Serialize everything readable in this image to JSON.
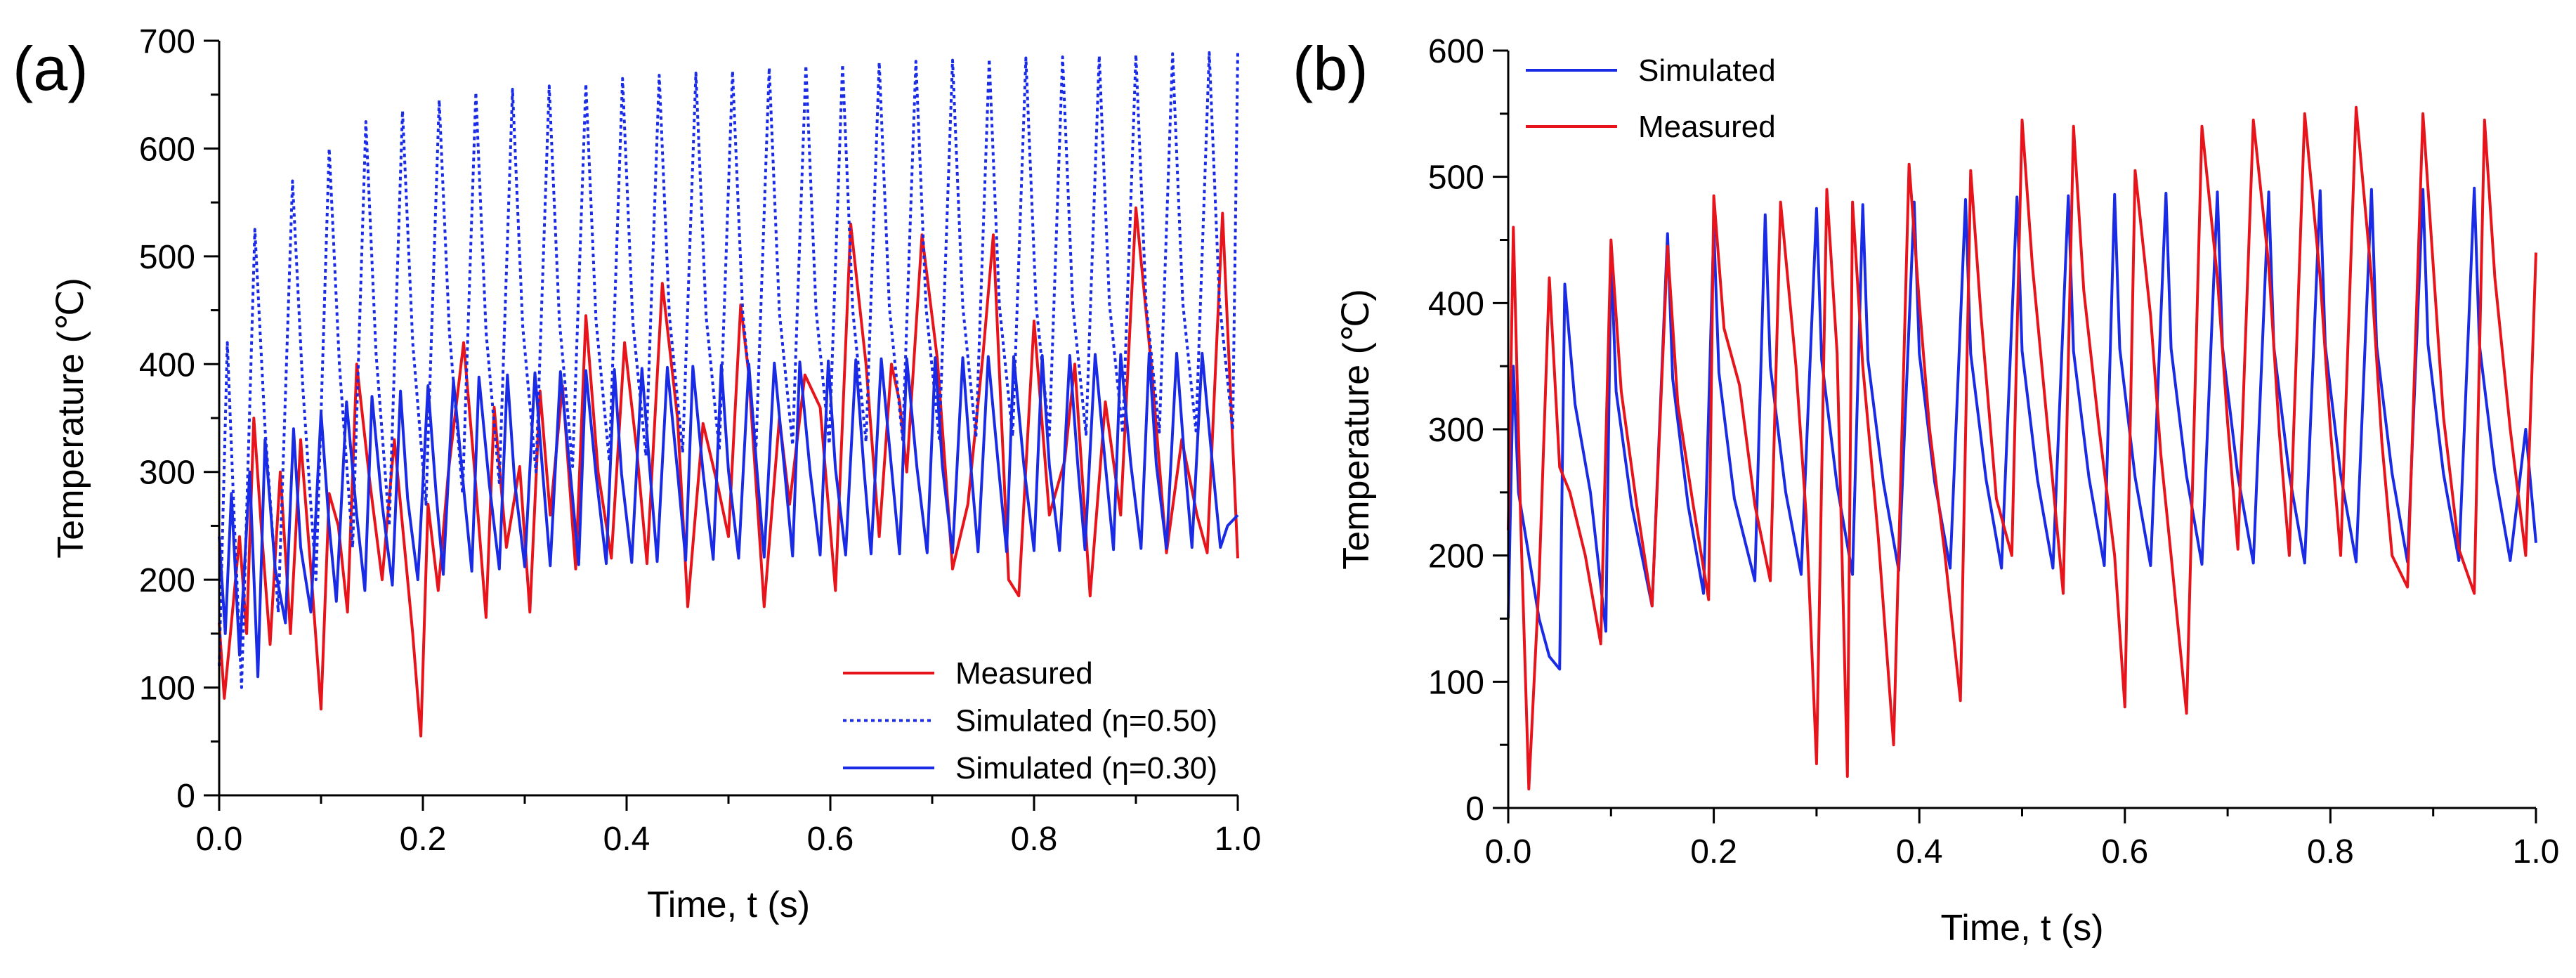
{
  "colors": {
    "measured": "#e8141b",
    "simulated": "#1a2be6",
    "axis": "#000000"
  },
  "chart_data": [
    {
      "panel_label": "(a)",
      "type": "line",
      "xlabel": "Time, t (s)",
      "ylabel": "Temperature (℃)",
      "xlim": [
        0,
        1.0
      ],
      "ylim": [
        0,
        700
      ],
      "xticks": [
        "0.0",
        "0.2",
        "0.4",
        "0.6",
        "0.8",
        "1.0"
      ],
      "yticks": [
        "0",
        "100",
        "200",
        "300",
        "400",
        "500",
        "600",
        "700"
      ],
      "legend_position": "bottom-right",
      "series": [
        {
          "name": "Measured",
          "style": "solid",
          "color": "#e8141b",
          "x": [
            0,
            0.005,
            0.013,
            0.02,
            0.027,
            0.034,
            0.042,
            0.05,
            0.06,
            0.07,
            0.08,
            0.09,
            0.1,
            0.108,
            0.117,
            0.126,
            0.135,
            0.148,
            0.16,
            0.172,
            0.18,
            0.19,
            0.198,
            0.205,
            0.215,
            0.225,
            0.24,
            0.25,
            0.262,
            0.27,
            0.282,
            0.295,
            0.305,
            0.315,
            0.325,
            0.337,
            0.35,
            0.36,
            0.372,
            0.385,
            0.398,
            0.41,
            0.42,
            0.435,
            0.45,
            0.46,
            0.475,
            0.49,
            0.5,
            0.512,
            0.52,
            0.535,
            0.55,
            0.56,
            0.575,
            0.59,
            0.605,
            0.62,
            0.635,
            0.648,
            0.66,
            0.668,
            0.675,
            0.69,
            0.705,
            0.72,
            0.735,
            0.75,
            0.76,
            0.775,
            0.785,
            0.8,
            0.815,
            0.83,
            0.84,
            0.855,
            0.87,
            0.885,
            0.9,
            0.915,
            0.93,
            0.945,
            0.96,
            0.97,
            0.985,
            1.0
          ],
          "y": [
            160,
            90,
            170,
            240,
            150,
            350,
            240,
            140,
            300,
            150,
            330,
            210,
            80,
            280,
            250,
            170,
            400,
            290,
            200,
            330,
            250,
            150,
            55,
            270,
            190,
            300,
            420,
            310,
            165,
            360,
            230,
            305,
            170,
            375,
            260,
            380,
            210,
            445,
            300,
            220,
            420,
            320,
            215,
            475,
            350,
            175,
            345,
            285,
            240,
            455,
            390,
            175,
            350,
            270,
            390,
            360,
            190,
            530,
            400,
            240,
            400,
            365,
            300,
            520,
            405,
            210,
            270,
            410,
            520,
            200,
            185,
            440,
            260,
            310,
            400,
            185,
            365,
            260,
            545,
            400,
            225,
            330,
            260,
            225,
            540,
            220
          ]
        },
        {
          "name": "Simulated (η=0.50)",
          "style": "dotted",
          "color": "#1a2be6",
          "x": [
            0,
            0.008,
            0.015,
            0.022,
            0.035,
            0.045,
            0.058,
            0.072,
            0.082,
            0.095,
            0.108,
            0.118,
            0.131,
            0.144,
            0.154,
            0.167,
            0.18,
            0.19,
            0.203,
            0.216,
            0.226,
            0.239,
            0.252,
            0.262,
            0.275,
            0.288,
            0.298,
            0.311,
            0.324,
            0.334,
            0.347,
            0.36,
            0.37,
            0.383,
            0.396,
            0.406,
            0.419,
            0.432,
            0.442,
            0.455,
            0.468,
            0.478,
            0.491,
            0.504,
            0.514,
            0.527,
            0.54,
            0.55,
            0.563,
            0.576,
            0.586,
            0.599,
            0.612,
            0.622,
            0.635,
            0.648,
            0.658,
            0.671,
            0.684,
            0.694,
            0.707,
            0.72,
            0.73,
            0.743,
            0.756,
            0.766,
            0.779,
            0.792,
            0.802,
            0.815,
            0.828,
            0.838,
            0.851,
            0.864,
            0.874,
            0.887,
            0.9,
            0.91,
            0.923,
            0.936,
            0.946,
            0.959,
            0.972,
            0.982,
            0.995,
            1.0
          ],
          "y": [
            120,
            420,
            250,
            100,
            525,
            340,
            170,
            570,
            380,
            200,
            600,
            400,
            230,
            625,
            410,
            250,
            635,
            420,
            270,
            645,
            430,
            280,
            652,
            430,
            290,
            655,
            435,
            300,
            658,
            440,
            305,
            660,
            440,
            310,
            665,
            440,
            315,
            668,
            445,
            318,
            670,
            445,
            320,
            672,
            448,
            322,
            675,
            448,
            325,
            677,
            450,
            326,
            678,
            450,
            328,
            680,
            452,
            330,
            681,
            452,
            331,
            682,
            454,
            332,
            683,
            454,
            333,
            684,
            455,
            334,
            685,
            455,
            335,
            686,
            456,
            336,
            687,
            456,
            337,
            688,
            457,
            338,
            689,
            458,
            339,
            690
          ]
        },
        {
          "name": "Simulated (η=0.30)",
          "style": "solid",
          "color": "#1a2be6",
          "x": [
            0,
            0.006,
            0.012,
            0.02,
            0.03,
            0.038,
            0.045,
            0.055,
            0.065,
            0.073,
            0.08,
            0.09,
            0.1,
            0.108,
            0.115,
            0.125,
            0.135,
            0.143,
            0.15,
            0.16,
            0.17,
            0.178,
            0.185,
            0.195,
            0.205,
            0.213,
            0.22,
            0.23,
            0.24,
            0.248,
            0.255,
            0.265,
            0.275,
            0.283,
            0.29,
            0.3,
            0.31,
            0.318,
            0.325,
            0.335,
            0.345,
            0.353,
            0.36,
            0.37,
            0.38,
            0.388,
            0.395,
            0.405,
            0.415,
            0.423,
            0.43,
            0.44,
            0.45,
            0.458,
            0.465,
            0.475,
            0.485,
            0.493,
            0.5,
            0.51,
            0.52,
            0.528,
            0.535,
            0.545,
            0.555,
            0.563,
            0.57,
            0.58,
            0.59,
            0.598,
            0.605,
            0.615,
            0.625,
            0.633,
            0.64,
            0.65,
            0.66,
            0.668,
            0.675,
            0.685,
            0.695,
            0.703,
            0.71,
            0.72,
            0.73,
            0.738,
            0.745,
            0.755,
            0.765,
            0.773,
            0.78,
            0.79,
            0.8,
            0.808,
            0.815,
            0.825,
            0.835,
            0.843,
            0.85,
            0.86,
            0.87,
            0.878,
            0.885,
            0.895,
            0.905,
            0.913,
            0.92,
            0.93,
            0.94,
            0.948,
            0.955,
            0.965,
            0.975,
            0.983,
            0.99,
            1.0
          ],
          "y": [
            240,
            150,
            280,
            130,
            300,
            110,
            330,
            210,
            160,
            340,
            230,
            170,
            355,
            250,
            180,
            365,
            260,
            190,
            370,
            270,
            195,
            375,
            275,
            200,
            380,
            280,
            205,
            385,
            285,
            208,
            388,
            290,
            210,
            390,
            292,
            212,
            392,
            295,
            213,
            393,
            296,
            214,
            394,
            297,
            215,
            395,
            298,
            216,
            396,
            299,
            217,
            397,
            300,
            218,
            398,
            300,
            219,
            399,
            301,
            220,
            400,
            301,
            221,
            401,
            302,
            222,
            402,
            302,
            223,
            403,
            303,
            223,
            404,
            303,
            224,
            405,
            304,
            224,
            405,
            304,
            225,
            406,
            305,
            225,
            406,
            305,
            226,
            407,
            305,
            226,
            407,
            306,
            227,
            408,
            306,
            227,
            408,
            306,
            228,
            409,
            307,
            228,
            409,
            307,
            229,
            410,
            307,
            229,
            410,
            308,
            230,
            410,
            308,
            230,
            250,
            260
          ]
        }
      ]
    },
    {
      "panel_label": "(b)",
      "type": "line",
      "xlabel": "Time, t (s)",
      "ylabel": "Temperature (℃)",
      "xlim": [
        0,
        1.0
      ],
      "ylim": [
        0,
        600
      ],
      "xticks": [
        "0.0",
        "0.2",
        "0.4",
        "0.6",
        "0.8",
        "1.0"
      ],
      "yticks": [
        "0",
        "100",
        "200",
        "300",
        "400",
        "500",
        "600"
      ],
      "legend_position": "top-left",
      "series": [
        {
          "name": "Simulated",
          "style": "solid",
          "color": "#1a2be6",
          "x": [
            0,
            0.005,
            0.01,
            0.02,
            0.03,
            0.04,
            0.05,
            0.055,
            0.065,
            0.08,
            0.095,
            0.1,
            0.105,
            0.12,
            0.14,
            0.155,
            0.16,
            0.175,
            0.19,
            0.2,
            0.205,
            0.22,
            0.24,
            0.25,
            0.255,
            0.27,
            0.285,
            0.3,
            0.305,
            0.32,
            0.335,
            0.345,
            0.35,
            0.365,
            0.38,
            0.395,
            0.4,
            0.415,
            0.43,
            0.445,
            0.45,
            0.465,
            0.48,
            0.495,
            0.5,
            0.515,
            0.53,
            0.545,
            0.55,
            0.565,
            0.58,
            0.59,
            0.595,
            0.61,
            0.625,
            0.64,
            0.645,
            0.66,
            0.675,
            0.69,
            0.695,
            0.71,
            0.725,
            0.74,
            0.745,
            0.76,
            0.775,
            0.79,
            0.795,
            0.81,
            0.825,
            0.84,
            0.845,
            0.86,
            0.875,
            0.89,
            0.895,
            0.91,
            0.925,
            0.94,
            0.945,
            0.96,
            0.975,
            0.99,
            1.0
          ],
          "y": [
            150,
            350,
            250,
            200,
            150,
            120,
            110,
            415,
            320,
            250,
            140,
            440,
            330,
            240,
            160,
            455,
            340,
            240,
            170,
            460,
            345,
            245,
            180,
            470,
            350,
            250,
            185,
            475,
            355,
            255,
            185,
            478,
            355,
            258,
            188,
            480,
            360,
            258,
            190,
            482,
            360,
            260,
            190,
            484,
            362,
            260,
            190,
            485,
            362,
            262,
            192,
            486,
            364,
            262,
            192,
            487,
            364,
            263,
            193,
            488,
            365,
            263,
            194,
            488,
            365,
            264,
            194,
            489,
            366,
            264,
            195,
            490,
            366,
            265,
            195,
            490,
            367,
            265,
            196,
            491,
            367,
            266,
            196,
            300,
            210
          ]
        },
        {
          "name": "Measured",
          "style": "solid",
          "color": "#e8141b",
          "x": [
            0,
            0.005,
            0.012,
            0.02,
            0.03,
            0.04,
            0.05,
            0.06,
            0.075,
            0.09,
            0.1,
            0.11,
            0.125,
            0.14,
            0.155,
            0.165,
            0.18,
            0.195,
            0.2,
            0.21,
            0.225,
            0.24,
            0.255,
            0.265,
            0.28,
            0.29,
            0.3,
            0.31,
            0.32,
            0.33,
            0.335,
            0.345,
            0.36,
            0.375,
            0.39,
            0.4,
            0.41,
            0.425,
            0.44,
            0.45,
            0.46,
            0.475,
            0.49,
            0.5,
            0.51,
            0.525,
            0.54,
            0.55,
            0.56,
            0.575,
            0.59,
            0.6,
            0.61,
            0.625,
            0.635,
            0.645,
            0.66,
            0.675,
            0.69,
            0.7,
            0.71,
            0.725,
            0.74,
            0.75,
            0.76,
            0.775,
            0.79,
            0.8,
            0.81,
            0.825,
            0.84,
            0.85,
            0.86,
            0.875,
            0.89,
            0.9,
            0.91,
            0.925,
            0.94,
            0.95,
            0.96,
            0.975,
            0.99,
            1.0
          ],
          "y": [
            220,
            460,
            230,
            15,
            180,
            420,
            270,
            250,
            200,
            130,
            450,
            330,
            240,
            160,
            445,
            320,
            240,
            165,
            485,
            380,
            335,
            240,
            180,
            480,
            350,
            230,
            35,
            490,
            360,
            25,
            480,
            350,
            215,
            50,
            510,
            400,
            300,
            200,
            85,
            505,
            390,
            245,
            200,
            545,
            430,
            300,
            170,
            540,
            410,
            300,
            200,
            80,
            505,
            390,
            280,
            200,
            75,
            540,
            420,
            305,
            205,
            545,
            430,
            300,
            200,
            550,
            420,
            300,
            200,
            555,
            420,
            290,
            200,
            175,
            550,
            430,
            310,
            205,
            170,
            545,
            420,
            300,
            200,
            440
          ]
        }
      ]
    }
  ]
}
